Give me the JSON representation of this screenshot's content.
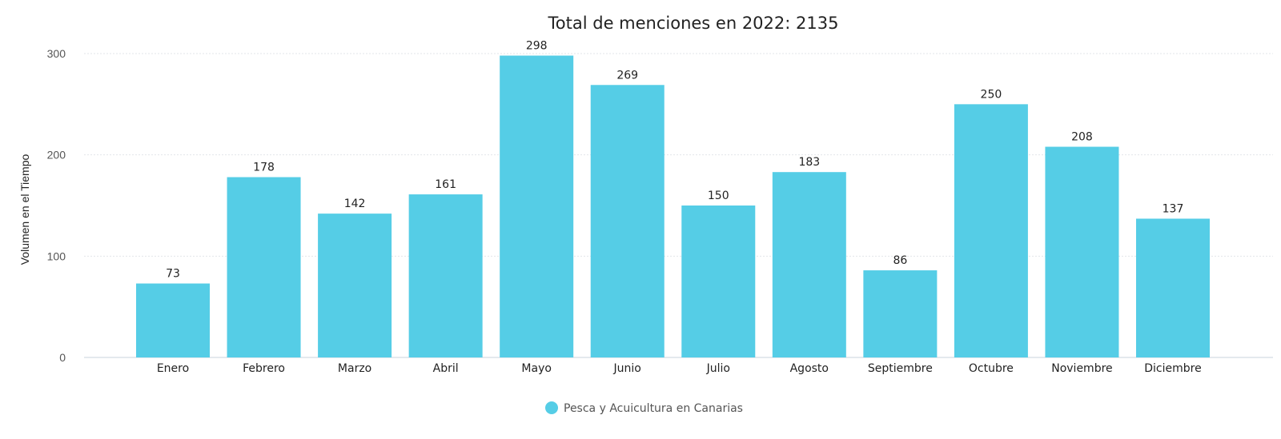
{
  "chart_data": {
    "type": "bar",
    "title": "Total de menciones en 2022: 2135",
    "ylabel": "Volumen en el Tiempo",
    "xlabel": "",
    "ylim": [
      0,
      300
    ],
    "yticks": [
      0,
      100,
      200,
      300
    ],
    "categories": [
      "Enero",
      "Febrero",
      "Marzo",
      "Abril",
      "Mayo",
      "Junio",
      "Julio",
      "Agosto",
      "Septiembre",
      "Octubre",
      "Noviembre",
      "Diciembre"
    ],
    "series": [
      {
        "name": "Pesca y Acuicultura en Canarias",
        "values": [
          73,
          178,
          142,
          161,
          298,
          269,
          150,
          183,
          86,
          250,
          208,
          137
        ],
        "color": "#55cde6"
      }
    ],
    "grid": true,
    "legend": "bottom-center"
  }
}
